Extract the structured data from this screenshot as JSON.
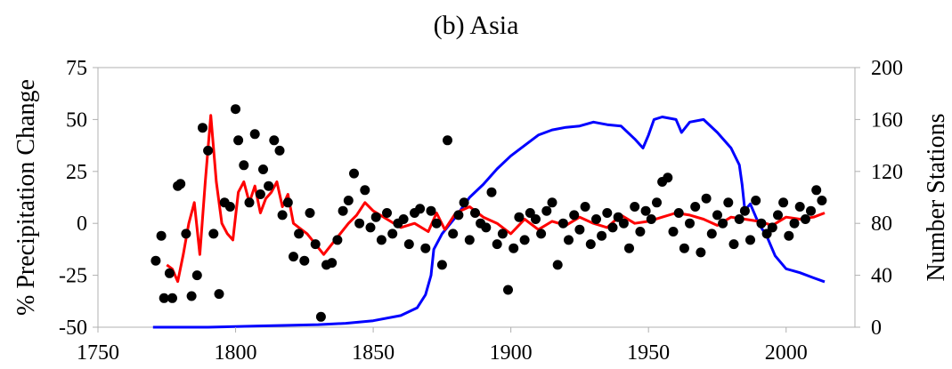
{
  "chart_data": {
    "type": "line",
    "title": "(b) Asia",
    "xlabel": "",
    "ylabel": "% Precipitation Change",
    "y2label": "Number Stations",
    "xlim": [
      1750,
      2025
    ],
    "ylim": [
      -50,
      75
    ],
    "y2lim": [
      0,
      200
    ],
    "xticks": [
      1750,
      1800,
      1850,
      1900,
      1950,
      2000
    ],
    "yticks": [
      -50,
      -25,
      0,
      25,
      50,
      75
    ],
    "y2ticks": [
      0,
      40,
      80,
      120,
      160,
      200
    ],
    "grid": false,
    "series": [
      {
        "kind": "line",
        "axis": "right",
        "color": "#0000ff",
        "x": [
          1770,
          1790,
          1810,
          1830,
          1840,
          1850,
          1860,
          1866,
          1869,
          1871,
          1872,
          1875,
          1880,
          1885,
          1890,
          1895,
          1900,
          1905,
          1910,
          1915,
          1920,
          1925,
          1930,
          1935,
          1940,
          1945,
          1948,
          1950,
          1952,
          1955,
          1960,
          1962,
          1965,
          1970,
          1975,
          1980,
          1983,
          1984,
          1985,
          1987,
          1990,
          1993,
          1996,
          2000,
          2005,
          2010,
          2014
        ],
        "y": [
          0,
          0,
          1,
          2,
          3,
          5,
          9,
          15,
          25,
          40,
          60,
          72,
          85,
          100,
          110,
          122,
          132,
          140,
          148,
          152,
          154,
          155,
          158,
          156,
          155,
          145,
          138,
          148,
          160,
          162,
          160,
          150,
          158,
          160,
          150,
          138,
          125,
          110,
          90,
          95,
          80,
          70,
          55,
          45,
          42,
          38,
          35
        ]
      },
      {
        "kind": "line",
        "axis": "left",
        "color": "#ff0000",
        "x": [
          1775,
          1777,
          1779,
          1781,
          1783,
          1785,
          1787,
          1789,
          1791,
          1793,
          1795,
          1797,
          1799,
          1801,
          1803,
          1805,
          1807,
          1809,
          1811,
          1813,
          1815,
          1817,
          1819,
          1821,
          1823,
          1826,
          1829,
          1832,
          1835,
          1838,
          1841,
          1844,
          1847,
          1850,
          1855,
          1860,
          1865,
          1870,
          1873,
          1876,
          1880,
          1885,
          1890,
          1895,
          1900,
          1905,
          1910,
          1915,
          1920,
          1925,
          1930,
          1935,
          1940,
          1945,
          1950,
          1955,
          1960,
          1965,
          1970,
          1975,
          1980,
          1985,
          1990,
          1995,
          2000,
          2005,
          2010,
          2014
        ],
        "y": [
          -20,
          -22,
          -28,
          -15,
          0,
          10,
          -15,
          20,
          52,
          20,
          0,
          -5,
          -8,
          15,
          20,
          10,
          18,
          5,
          12,
          15,
          20,
          8,
          14,
          0,
          -2,
          -5,
          -10,
          -15,
          -10,
          -5,
          0,
          4,
          10,
          6,
          2,
          -2,
          0,
          -4,
          5,
          -3,
          5,
          8,
          3,
          0,
          -5,
          2,
          -3,
          1,
          -1,
          3,
          0,
          -2,
          4,
          0,
          1,
          3,
          5,
          4,
          2,
          -1,
          3,
          2,
          1,
          -1,
          3,
          2,
          3,
          5
        ]
      },
      {
        "kind": "scatter",
        "axis": "left",
        "color": "#000000",
        "x": [
          1771,
          1773,
          1774,
          1776,
          1777,
          1779,
          1780,
          1782,
          1784,
          1786,
          1788,
          1790,
          1792,
          1794,
          1796,
          1798,
          1800,
          1801,
          1803,
          1805,
          1807,
          1809,
          1810,
          1812,
          1814,
          1816,
          1817,
          1819,
          1821,
          1823,
          1825,
          1827,
          1829,
          1831,
          1833,
          1835,
          1837,
          1839,
          1841,
          1843,
          1845,
          1847,
          1849,
          1851,
          1853,
          1855,
          1857,
          1859,
          1861,
          1863,
          1865,
          1867,
          1869,
          1871,
          1873,
          1875,
          1877,
          1879,
          1881,
          1883,
          1885,
          1887,
          1889,
          1891,
          1893,
          1895,
          1897,
          1899,
          1901,
          1903,
          1905,
          1907,
          1909,
          1911,
          1913,
          1915,
          1917,
          1919,
          1921,
          1923,
          1925,
          1927,
          1929,
          1931,
          1933,
          1935,
          1937,
          1939,
          1941,
          1943,
          1945,
          1947,
          1949,
          1951,
          1953,
          1955,
          1957,
          1959,
          1961,
          1963,
          1965,
          1967,
          1969,
          1971,
          1973,
          1975,
          1977,
          1979,
          1981,
          1983,
          1985,
          1987,
          1989,
          1991,
          1993,
          1995,
          1997,
          1999,
          2001,
          2003,
          2005,
          2007,
          2009,
          2011,
          2013
        ],
        "y": [
          -18,
          -6,
          -36,
          -24,
          -36,
          18,
          19,
          -5,
          -35,
          -25,
          46,
          35,
          -5,
          -34,
          10,
          8,
          55,
          40,
          28,
          10,
          43,
          14,
          26,
          18,
          40,
          35,
          4,
          10,
          -16,
          -5,
          -18,
          5,
          -10,
          -45,
          -20,
          -19,
          -8,
          6,
          11,
          24,
          0,
          16,
          -2,
          3,
          -8,
          5,
          -5,
          0,
          2,
          -10,
          5,
          7,
          -12,
          6,
          0,
          -20,
          40,
          -5,
          4,
          10,
          -8,
          5,
          0,
          -2,
          15,
          -10,
          -5,
          -32,
          -12,
          3,
          -8,
          5,
          2,
          -5,
          6,
          10,
          -20,
          0,
          -8,
          4,
          -3,
          8,
          -10,
          2,
          -6,
          5,
          -2,
          3,
          0,
          -12,
          8,
          -4,
          6,
          2,
          10,
          20,
          22,
          -4,
          5,
          -12,
          0,
          8,
          -14,
          12,
          -5,
          4,
          0,
          10,
          -10,
          2,
          6,
          -8,
          11,
          0,
          -5,
          -2,
          4,
          10,
          -6,
          0,
          8,
          2,
          6,
          16,
          11
        ]
      }
    ]
  }
}
